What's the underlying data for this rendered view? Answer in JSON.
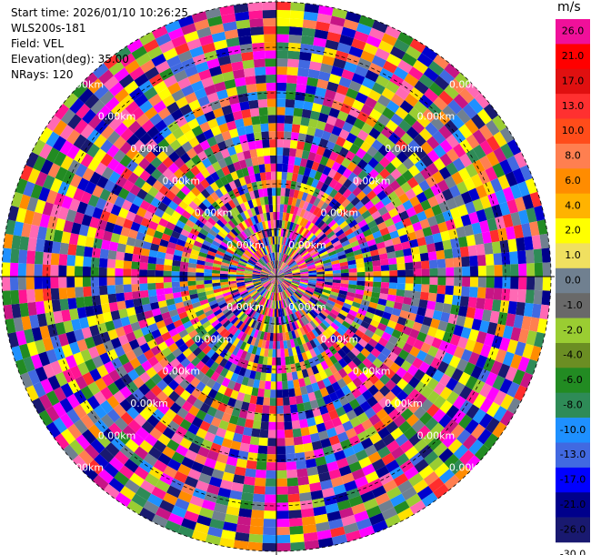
{
  "header": {
    "start_time": "Start time: 2026/01/10 10:26:25",
    "instrument": "WLS200s-181",
    "field": "Field: VEL",
    "elevation": "Elevation(deg): 35.00",
    "nrays": "NRays: 120"
  },
  "colorbar": {
    "unit": "m/s",
    "levels": [
      {
        "label": "26.0",
        "color": "#f0109a"
      },
      {
        "label": "21.0",
        "color": "#ff0000"
      },
      {
        "label": "17.0",
        "color": "#e01010"
      },
      {
        "label": "13.0",
        "color": "#ff3030"
      },
      {
        "label": "10.0",
        "color": "#ff4c1a"
      },
      {
        "label": "8.0",
        "color": "#ff7f50"
      },
      {
        "label": "6.0",
        "color": "#ff8c00"
      },
      {
        "label": "4.0",
        "color": "#ffb300"
      },
      {
        "label": "2.0",
        "color": "#ffff00"
      },
      {
        "label": "1.0",
        "color": "#f0e060"
      },
      {
        "label": "0.0",
        "color": "#708090"
      },
      {
        "label": "-1.0",
        "color": "#696969"
      },
      {
        "label": "-2.0",
        "color": "#9acd32"
      },
      {
        "label": "-4.0",
        "color": "#6b8e23"
      },
      {
        "label": "-6.0",
        "color": "#228b22"
      },
      {
        "label": "-8.0",
        "color": "#2e8b57"
      },
      {
        "label": "-10.0",
        "color": "#1e90ff"
      },
      {
        "label": "-13.0",
        "color": "#4169e1"
      },
      {
        "label": "-17.0",
        "color": "#0000ff"
      },
      {
        "label": "-21.0",
        "color": "#00008b"
      },
      {
        "label": "-26.0",
        "color": "#191970"
      },
      {
        "label": "-30.0",
        "color": ""
      }
    ]
  },
  "chart_data": {
    "type": "heatmap",
    "projection": "polar-ppi",
    "field": "VEL",
    "nrays": 120,
    "elevation_deg": 35.0,
    "range_labels": [
      "0.00km",
      "0.00km",
      "0.00km",
      "0.00km",
      "0.00km",
      "0.00km"
    ],
    "value_colors": [
      "#ff1493",
      "#ffe000",
      "#0000cd",
      "#ff2d2d",
      "#00008b",
      "#228b22",
      "#4169e1",
      "#ff69b4",
      "#ff8c00",
      "#c71585",
      "#9acd32",
      "#1e90ff",
      "#ff7f50",
      "#191970",
      "#ffff00",
      "#2e8b57",
      "#708090",
      "#ff00ff"
    ],
    "grid": true
  }
}
